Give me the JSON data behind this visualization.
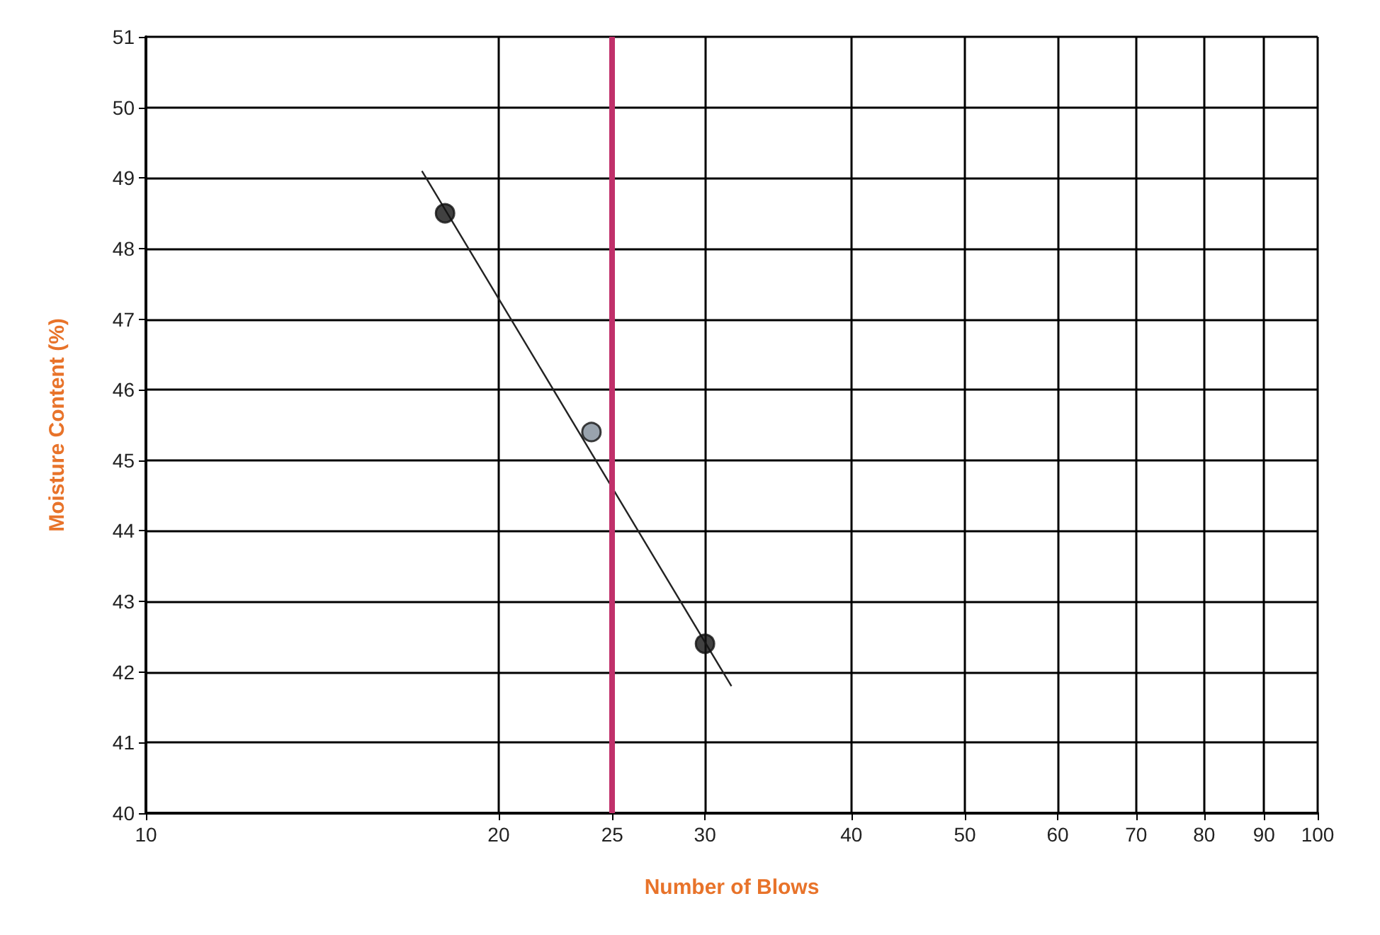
{
  "chart_data": {
    "type": "scatter",
    "xlabel": "Number of Blows",
    "ylabel": "Moisture Content (%)",
    "log": "x",
    "xlim": [
      10,
      100
    ],
    "xticks": [
      10,
      20,
      25,
      30,
      40,
      50,
      60,
      70,
      80,
      90,
      100
    ],
    "ylim": [
      40,
      51
    ],
    "yticks": [
      40,
      41,
      42,
      43,
      44,
      45,
      46,
      47,
      48,
      49,
      50,
      51
    ],
    "grid": true,
    "series": [
      {
        "x": [
          18,
          24,
          30
        ],
        "values": [
          48.5,
          45.4,
          42.4
        ],
        "marker": "circle",
        "color": "#111111",
        "colors": [
          "#111111",
          "#7f8c99",
          "#111111"
        ]
      },
      {
        "type": "line",
        "x": [
          17.2,
          31.6
        ],
        "values": [
          49.1,
          41.8
        ],
        "color": "#222222",
        "line_style": "solid"
      }
    ],
    "ref_lines": [
      {
        "axis": "x",
        "value": 25,
        "color": "#c0306a"
      }
    ]
  }
}
